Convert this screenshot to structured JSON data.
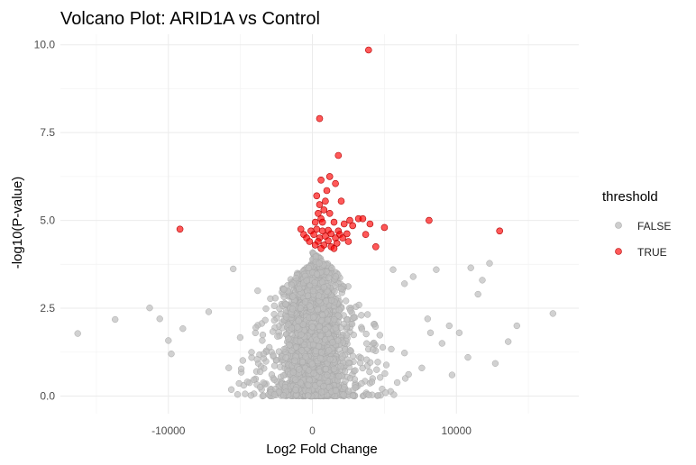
{
  "chart_data": {
    "type": "scatter",
    "title": "Volcano Plot: ARID1A vs Control",
    "xlabel": "Log2 Fold Change",
    "ylabel": "-log10(P-value)",
    "xlim": [
      -17500,
      18500
    ],
    "ylim": [
      -0.5,
      10.3
    ],
    "x_ticks": [
      -10000,
      0,
      10000
    ],
    "x_tick_labels": [
      "-10000",
      "0",
      "10000"
    ],
    "y_ticks": [
      0,
      2.5,
      5,
      7.5,
      10
    ],
    "y_tick_labels": [
      "0.0",
      "2.5",
      "5.0",
      "7.5",
      "10.0"
    ],
    "grid": true,
    "legend": {
      "title": "threshold",
      "position": "right",
      "entries": [
        {
          "label": "FALSE",
          "color": "#bebebe"
        },
        {
          "label": "TRUE",
          "color": "#ff0000"
        }
      ]
    },
    "series": [
      {
        "name": "TRUE",
        "color": "#ff0000",
        "points": [
          [
            3900,
            9.85
          ],
          [
            500,
            7.9
          ],
          [
            1800,
            6.85
          ],
          [
            1200,
            6.25
          ],
          [
            600,
            6.15
          ],
          [
            1600,
            6.05
          ],
          [
            1000,
            5.85
          ],
          [
            300,
            5.7
          ],
          [
            2000,
            5.55
          ],
          [
            900,
            5.55
          ],
          [
            500,
            5.45
          ],
          [
            800,
            5.3
          ],
          [
            400,
            5.2
          ],
          [
            1200,
            5.2
          ],
          [
            600,
            5.05
          ],
          [
            3200,
            5.05
          ],
          [
            3500,
            5.05
          ],
          [
            2600,
            5.0
          ],
          [
            8100,
            5.0
          ],
          [
            200,
            4.95
          ],
          [
            700,
            4.95
          ],
          [
            1500,
            4.95
          ],
          [
            2200,
            4.9
          ],
          [
            4000,
            4.9
          ],
          [
            2800,
            4.85
          ],
          [
            5000,
            4.8
          ],
          [
            -9200,
            4.75
          ],
          [
            -800,
            4.75
          ],
          [
            -100,
            4.7
          ],
          [
            300,
            4.75
          ],
          [
            700,
            4.7
          ],
          [
            1100,
            4.72
          ],
          [
            1800,
            4.7
          ],
          [
            13000,
            4.7
          ],
          [
            -600,
            4.6
          ],
          [
            100,
            4.6
          ],
          [
            1300,
            4.62
          ],
          [
            1900,
            4.6
          ],
          [
            2400,
            4.62
          ],
          [
            3700,
            4.6
          ],
          [
            -400,
            4.5
          ],
          [
            500,
            4.5
          ],
          [
            900,
            4.55
          ],
          [
            1600,
            4.5
          ],
          [
            2100,
            4.5
          ],
          [
            -200,
            4.4
          ],
          [
            400,
            4.4
          ],
          [
            1100,
            4.42
          ],
          [
            1700,
            4.35
          ],
          [
            2500,
            4.4
          ],
          [
            200,
            4.3
          ],
          [
            800,
            4.3
          ],
          [
            1300,
            4.25
          ],
          [
            4400,
            4.25
          ],
          [
            600,
            4.2
          ],
          [
            1500,
            4.2
          ]
        ]
      }
    ],
    "false_cloud": {
      "name": "FALSE",
      "color": "#bebebe",
      "envelope": [
        [
          0,
          4.1
        ],
        [
          200,
          4.0
        ],
        [
          400,
          4.0
        ],
        [
          600,
          3.9
        ],
        [
          800,
          3.8
        ],
        [
          1000,
          3.8
        ],
        [
          1200,
          3.7
        ],
        [
          1500,
          3.6
        ],
        [
          2000,
          3.4
        ],
        [
          2500,
          3.2
        ],
        [
          3000,
          3.0
        ],
        [
          3500,
          2.6
        ],
        [
          4000,
          2.3
        ],
        [
          5000,
          1.9
        ],
        [
          6000,
          1.6
        ],
        [
          7000,
          1.3
        ],
        [
          8000,
          1.1
        ],
        [
          10000,
          0.9
        ],
        [
          12000,
          0.6
        ],
        [
          14000,
          0.4
        ],
        [
          16000,
          0.25
        ],
        [
          18000,
          0.15
        ]
      ],
      "outliers": [
        [
          -16300,
          1.78
        ],
        [
          -13700,
          2.18
        ],
        [
          -11300,
          2.51
        ],
        [
          -10600,
          2.2
        ],
        [
          -10000,
          1.58
        ],
        [
          -9800,
          1.2
        ],
        [
          -9000,
          1.92
        ],
        [
          -7200,
          2.4
        ],
        [
          -5500,
          3.62
        ],
        [
          -3800,
          3.0
        ],
        [
          5600,
          3.6
        ],
        [
          6400,
          3.2
        ],
        [
          7000,
          3.4
        ],
        [
          8600,
          3.6
        ],
        [
          8000,
          2.2
        ],
        [
          8200,
          1.8
        ],
        [
          9000,
          1.5
        ],
        [
          9500,
          2.0
        ],
        [
          10200,
          1.8
        ],
        [
          11000,
          3.65
        ],
        [
          11500,
          2.9
        ],
        [
          11800,
          3.3
        ],
        [
          12300,
          3.78
        ],
        [
          12700,
          0.93
        ],
        [
          13600,
          1.55
        ],
        [
          16700,
          2.35
        ],
        [
          10800,
          1.1
        ],
        [
          14200,
          2.0
        ],
        [
          9700,
          0.6
        ],
        [
          7600,
          0.8
        ]
      ]
    }
  }
}
